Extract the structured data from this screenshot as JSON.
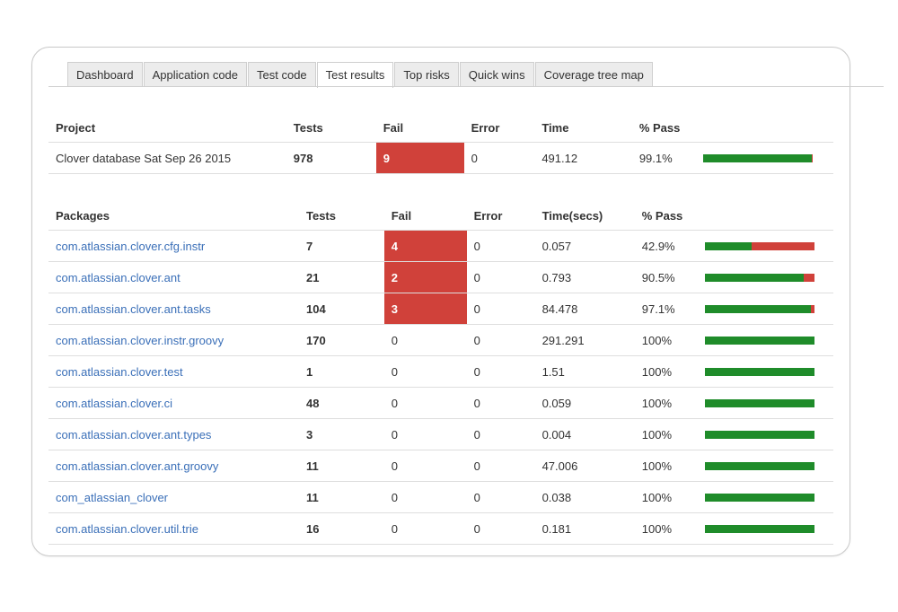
{
  "tabs": [
    "Dashboard",
    "Application code",
    "Test code",
    "Test results",
    "Top risks",
    "Quick wins",
    "Coverage tree map"
  ],
  "active_tab": "Test results",
  "project_table": {
    "headers": [
      "Project",
      "Tests",
      "Fail",
      "Error",
      "Time",
      "% Pass"
    ],
    "row": {
      "name": "Clover database Sat Sep 26 2015",
      "tests": "978",
      "fail": "9",
      "error": "0",
      "time": "491.12",
      "pass": "99.1%",
      "pass_fraction": 0.991
    }
  },
  "packages_table": {
    "headers": [
      "Packages",
      "Tests",
      "Fail",
      "Error",
      "Time(secs)",
      "% Pass"
    ],
    "rows": [
      {
        "name": "com.atlassian.clover.cfg.instr",
        "tests": "7",
        "fail": "4",
        "error": "0",
        "time": "0.057",
        "pass": "42.9%",
        "pass_fraction": 0.429
      },
      {
        "name": "com.atlassian.clover.ant",
        "tests": "21",
        "fail": "2",
        "error": "0",
        "time": "0.793",
        "pass": "90.5%",
        "pass_fraction": 0.905
      },
      {
        "name": "com.atlassian.clover.ant.tasks",
        "tests": "104",
        "fail": "3",
        "error": "0",
        "time": "84.478",
        "pass": "97.1%",
        "pass_fraction": 0.971
      },
      {
        "name": "com.atlassian.clover.instr.groovy",
        "tests": "170",
        "fail": "0",
        "error": "0",
        "time": "291.291",
        "pass": "100%",
        "pass_fraction": 1.0
      },
      {
        "name": "com.atlassian.clover.test",
        "tests": "1",
        "fail": "0",
        "error": "0",
        "time": "1.51",
        "pass": "100%",
        "pass_fraction": 1.0
      },
      {
        "name": "com.atlassian.clover.ci",
        "tests": "48",
        "fail": "0",
        "error": "0",
        "time": "0.059",
        "pass": "100%",
        "pass_fraction": 1.0
      },
      {
        "name": "com.atlassian.clover.ant.types",
        "tests": "3",
        "fail": "0",
        "error": "0",
        "time": "0.004",
        "pass": "100%",
        "pass_fraction": 1.0
      },
      {
        "name": "com.atlassian.clover.ant.groovy",
        "tests": "11",
        "fail": "0",
        "error": "0",
        "time": "47.006",
        "pass": "100%",
        "pass_fraction": 1.0
      },
      {
        "name": "com_atlassian_clover",
        "tests": "11",
        "fail": "0",
        "error": "0",
        "time": "0.038",
        "pass": "100%",
        "pass_fraction": 1.0
      },
      {
        "name": "com.atlassian.clover.util.trie",
        "tests": "16",
        "fail": "0",
        "error": "0",
        "time": "0.181",
        "pass": "100%",
        "pass_fraction": 1.0
      }
    ]
  },
  "colors": {
    "fail": "#d0413a",
    "pass": "#1f8c2a",
    "link": "#3a6fb8"
  }
}
